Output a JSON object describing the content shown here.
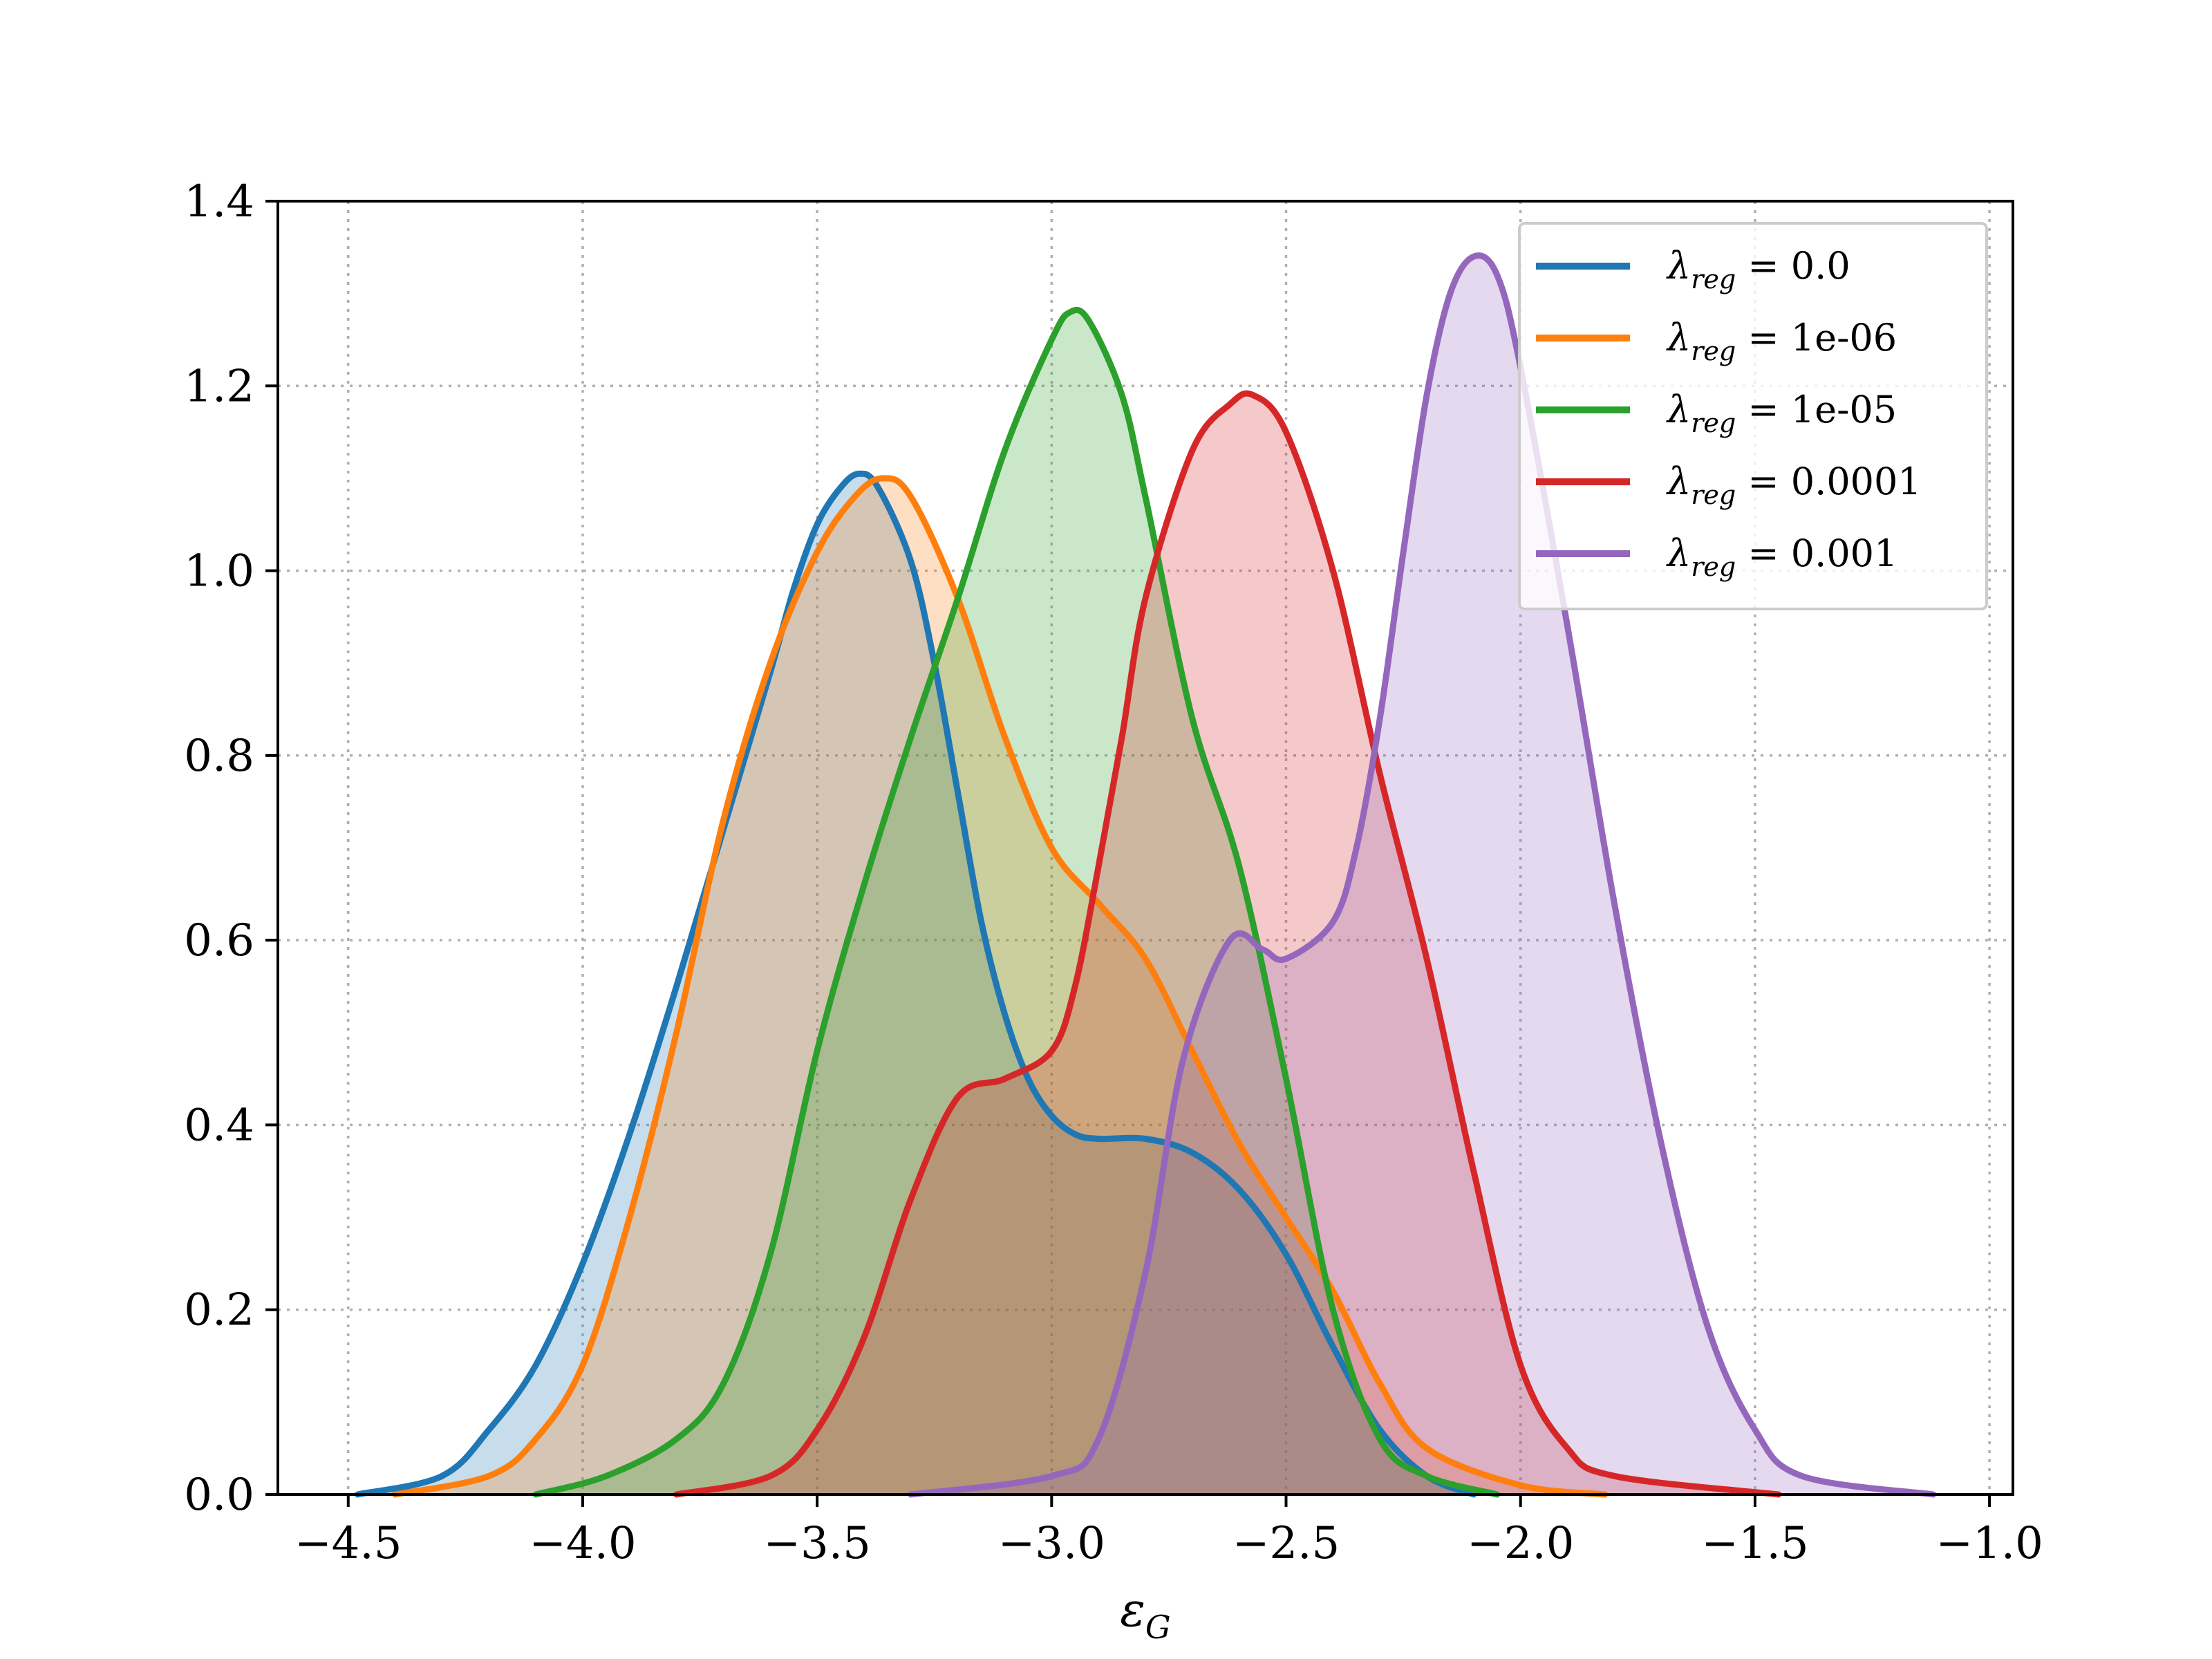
{
  "chart_data": {
    "type": "area",
    "title": "",
    "xlabel": "ε",
    "xlabel_subscript": "G",
    "ylabel": "",
    "xlim": [
      -4.65,
      -0.95
    ],
    "ylim": [
      0,
      1.4
    ],
    "grid": true,
    "legend_position": "top-right",
    "x_ticks": [
      -4.5,
      -4.0,
      -3.5,
      -3.0,
      -2.5,
      -2.0,
      -1.5,
      -1.0
    ],
    "x_tick_labels": [
      "−4.5",
      "−4.0",
      "−3.5",
      "−3.0",
      "−2.5",
      "−2.0",
      "−1.5",
      "−1.0"
    ],
    "y_ticks": [
      0.0,
      0.2,
      0.4,
      0.6,
      0.8,
      1.0,
      1.2,
      1.4
    ],
    "y_tick_labels": [
      "0.0",
      "0.2",
      "0.4",
      "0.6",
      "0.8",
      "1.0",
      "1.2",
      "1.4"
    ],
    "legend_symbol": "λ",
    "legend_subscript": "reg",
    "series": [
      {
        "name": "0.0",
        "color": "#1f77b4",
        "points": [
          [
            -4.48,
            0.0
          ],
          [
            -4.3,
            0.02
          ],
          [
            -4.2,
            0.07
          ],
          [
            -4.1,
            0.14
          ],
          [
            -4.0,
            0.25
          ],
          [
            -3.9,
            0.39
          ],
          [
            -3.8,
            0.55
          ],
          [
            -3.7,
            0.72
          ],
          [
            -3.6,
            0.89
          ],
          [
            -3.55,
            0.98
          ],
          [
            -3.5,
            1.05
          ],
          [
            -3.45,
            1.09
          ],
          [
            -3.41,
            1.105
          ],
          [
            -3.37,
            1.09
          ],
          [
            -3.3,
            1.01
          ],
          [
            -3.25,
            0.9
          ],
          [
            -3.2,
            0.76
          ],
          [
            -3.15,
            0.62
          ],
          [
            -3.1,
            0.52
          ],
          [
            -3.05,
            0.45
          ],
          [
            -3.0,
            0.41
          ],
          [
            -2.95,
            0.39
          ],
          [
            -2.9,
            0.385
          ],
          [
            -2.8,
            0.385
          ],
          [
            -2.7,
            0.37
          ],
          [
            -2.6,
            0.33
          ],
          [
            -2.5,
            0.26
          ],
          [
            -2.4,
            0.16
          ],
          [
            -2.3,
            0.07
          ],
          [
            -2.2,
            0.02
          ],
          [
            -2.1,
            0.0
          ]
        ]
      },
      {
        "name": "1e-06",
        "color": "#ff7f0e",
        "points": [
          [
            -4.4,
            0.0
          ],
          [
            -4.2,
            0.02
          ],
          [
            -4.1,
            0.06
          ],
          [
            -4.0,
            0.14
          ],
          [
            -3.9,
            0.3
          ],
          [
            -3.8,
            0.5
          ],
          [
            -3.7,
            0.73
          ],
          [
            -3.6,
            0.9
          ],
          [
            -3.5,
            1.02
          ],
          [
            -3.42,
            1.08
          ],
          [
            -3.36,
            1.1
          ],
          [
            -3.3,
            1.08
          ],
          [
            -3.2,
            0.97
          ],
          [
            -3.1,
            0.82
          ],
          [
            -3.0,
            0.7
          ],
          [
            -2.9,
            0.64
          ],
          [
            -2.8,
            0.58
          ],
          [
            -2.7,
            0.48
          ],
          [
            -2.6,
            0.38
          ],
          [
            -2.5,
            0.3
          ],
          [
            -2.4,
            0.22
          ],
          [
            -2.3,
            0.12
          ],
          [
            -2.2,
            0.05
          ],
          [
            -2.0,
            0.01
          ],
          [
            -1.82,
            0.0
          ]
        ]
      },
      {
        "name": "1e-05",
        "color": "#2ca02c",
        "points": [
          [
            -4.1,
            0.0
          ],
          [
            -3.95,
            0.02
          ],
          [
            -3.8,
            0.06
          ],
          [
            -3.7,
            0.12
          ],
          [
            -3.6,
            0.26
          ],
          [
            -3.5,
            0.48
          ],
          [
            -3.4,
            0.66
          ],
          [
            -3.3,
            0.82
          ],
          [
            -3.2,
            0.97
          ],
          [
            -3.1,
            1.13
          ],
          [
            -3.0,
            1.25
          ],
          [
            -2.96,
            1.28
          ],
          [
            -2.92,
            1.27
          ],
          [
            -2.85,
            1.19
          ],
          [
            -2.8,
            1.08
          ],
          [
            -2.7,
            0.84
          ],
          [
            -2.6,
            0.68
          ],
          [
            -2.5,
            0.45
          ],
          [
            -2.4,
            0.2
          ],
          [
            -2.3,
            0.06
          ],
          [
            -2.2,
            0.02
          ],
          [
            -2.05,
            0.0
          ]
        ]
      },
      {
        "name": "0.0001",
        "color": "#d62728",
        "points": [
          [
            -3.8,
            0.0
          ],
          [
            -3.6,
            0.02
          ],
          [
            -3.5,
            0.07
          ],
          [
            -3.4,
            0.17
          ],
          [
            -3.3,
            0.32
          ],
          [
            -3.2,
            0.43
          ],
          [
            -3.1,
            0.45
          ],
          [
            -3.0,
            0.48
          ],
          [
            -2.95,
            0.55
          ],
          [
            -2.9,
            0.68
          ],
          [
            -2.85,
            0.82
          ],
          [
            -2.8,
            0.97
          ],
          [
            -2.7,
            1.13
          ],
          [
            -2.62,
            1.18
          ],
          [
            -2.57,
            1.19
          ],
          [
            -2.5,
            1.15
          ],
          [
            -2.4,
            1.0
          ],
          [
            -2.3,
            0.78
          ],
          [
            -2.2,
            0.58
          ],
          [
            -2.1,
            0.35
          ],
          [
            -2.0,
            0.14
          ],
          [
            -1.9,
            0.05
          ],
          [
            -1.8,
            0.02
          ],
          [
            -1.45,
            0.0
          ]
        ]
      },
      {
        "name": "0.001",
        "color": "#9467bd",
        "points": [
          [
            -3.3,
            0.0
          ],
          [
            -3.0,
            0.02
          ],
          [
            -2.9,
            0.06
          ],
          [
            -2.8,
            0.24
          ],
          [
            -2.72,
            0.47
          ],
          [
            -2.62,
            0.6
          ],
          [
            -2.55,
            0.59
          ],
          [
            -2.5,
            0.58
          ],
          [
            -2.4,
            0.62
          ],
          [
            -2.35,
            0.7
          ],
          [
            -2.3,
            0.84
          ],
          [
            -2.25,
            1.02
          ],
          [
            -2.2,
            1.19
          ],
          [
            -2.15,
            1.3
          ],
          [
            -2.1,
            1.34
          ],
          [
            -2.05,
            1.32
          ],
          [
            -2.0,
            1.22
          ],
          [
            -1.9,
            0.94
          ],
          [
            -1.8,
            0.64
          ],
          [
            -1.7,
            0.38
          ],
          [
            -1.6,
            0.18
          ],
          [
            -1.5,
            0.07
          ],
          [
            -1.4,
            0.02
          ],
          [
            -1.12,
            0.0
          ]
        ]
      }
    ]
  }
}
